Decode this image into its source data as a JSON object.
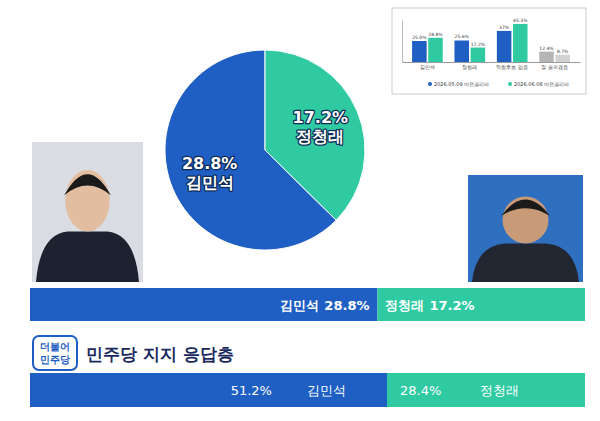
{
  "chart_data": [
    {
      "type": "pie",
      "categories": [
        "김민석",
        "정청래"
      ],
      "values": [
        28.8,
        17.2
      ],
      "value_labels": [
        "28.8%",
        "17.2%"
      ],
      "colors": [
        "#1f5fc4",
        "#2fcaa2"
      ],
      "data_labels": true
    },
    {
      "type": "bar",
      "orientation": "horizontal",
      "stacked": true,
      "categories": [
        null
      ],
      "xlim": [
        0,
        46
      ],
      "tick_labels": false,
      "data_labels": true,
      "series": [
        {
          "name": "김민석",
          "color": "#1f5fc4",
          "values": [
            28.8
          ],
          "value_labels": [
            "28.8%"
          ]
        },
        {
          "name": "정청래",
          "color": "#2fcaa2",
          "values": [
            17.2
          ],
          "value_labels": [
            "17.2%"
          ]
        }
      ]
    },
    {
      "type": "bar",
      "title": "민주당 지지 응답층",
      "orientation": "horizontal",
      "stacked": true,
      "categories": [
        null
      ],
      "xlim": [
        0,
        79.6
      ],
      "tick_labels": false,
      "data_labels": true,
      "series": [
        {
          "name": "김민석",
          "color": "#1f5fc4",
          "values": [
            51.2
          ],
          "value_labels": [
            "51.2%"
          ]
        },
        {
          "name": "정청래",
          "color": "#2fcaa2",
          "values": [
            28.4
          ],
          "value_labels": [
            "28.4%"
          ]
        }
      ]
    },
    {
      "type": "bar",
      "categories": [
        "김민석",
        "정청래",
        "적합후보 없음",
        "잘 모르겠음"
      ],
      "ylim": [
        0,
        50
      ],
      "tick_labels": "x",
      "legend": "bottom",
      "data_labels": true,
      "series": [
        {
          "name": "2026.05.09 비전코리아",
          "color": "#1f5fc4",
          "colors": [
            "#1f5fc4",
            "#1f5fc4",
            "#1f5fc4",
            "#b5b5b5"
          ],
          "values": [
            25.0,
            25.6,
            37.0,
            12.4
          ],
          "value_labels": [
            "25.0%",
            "25.6%",
            "37%",
            "12.4%"
          ]
        },
        {
          "name": "2026.06.08 비전코리아",
          "color": "#2fcaa2",
          "colors": [
            "#2fcaa2",
            "#2fcaa2",
            "#2fcaa2",
            "#d2d2d2"
          ],
          "values": [
            28.8,
            17.2,
            45.3,
            8.7
          ],
          "value_labels": [
            "28.8%",
            "17.2%",
            "45.3%",
            "8.7%"
          ]
        }
      ]
    }
  ],
  "logo": {
    "lines": [
      "더불어",
      "민주당"
    ]
  }
}
